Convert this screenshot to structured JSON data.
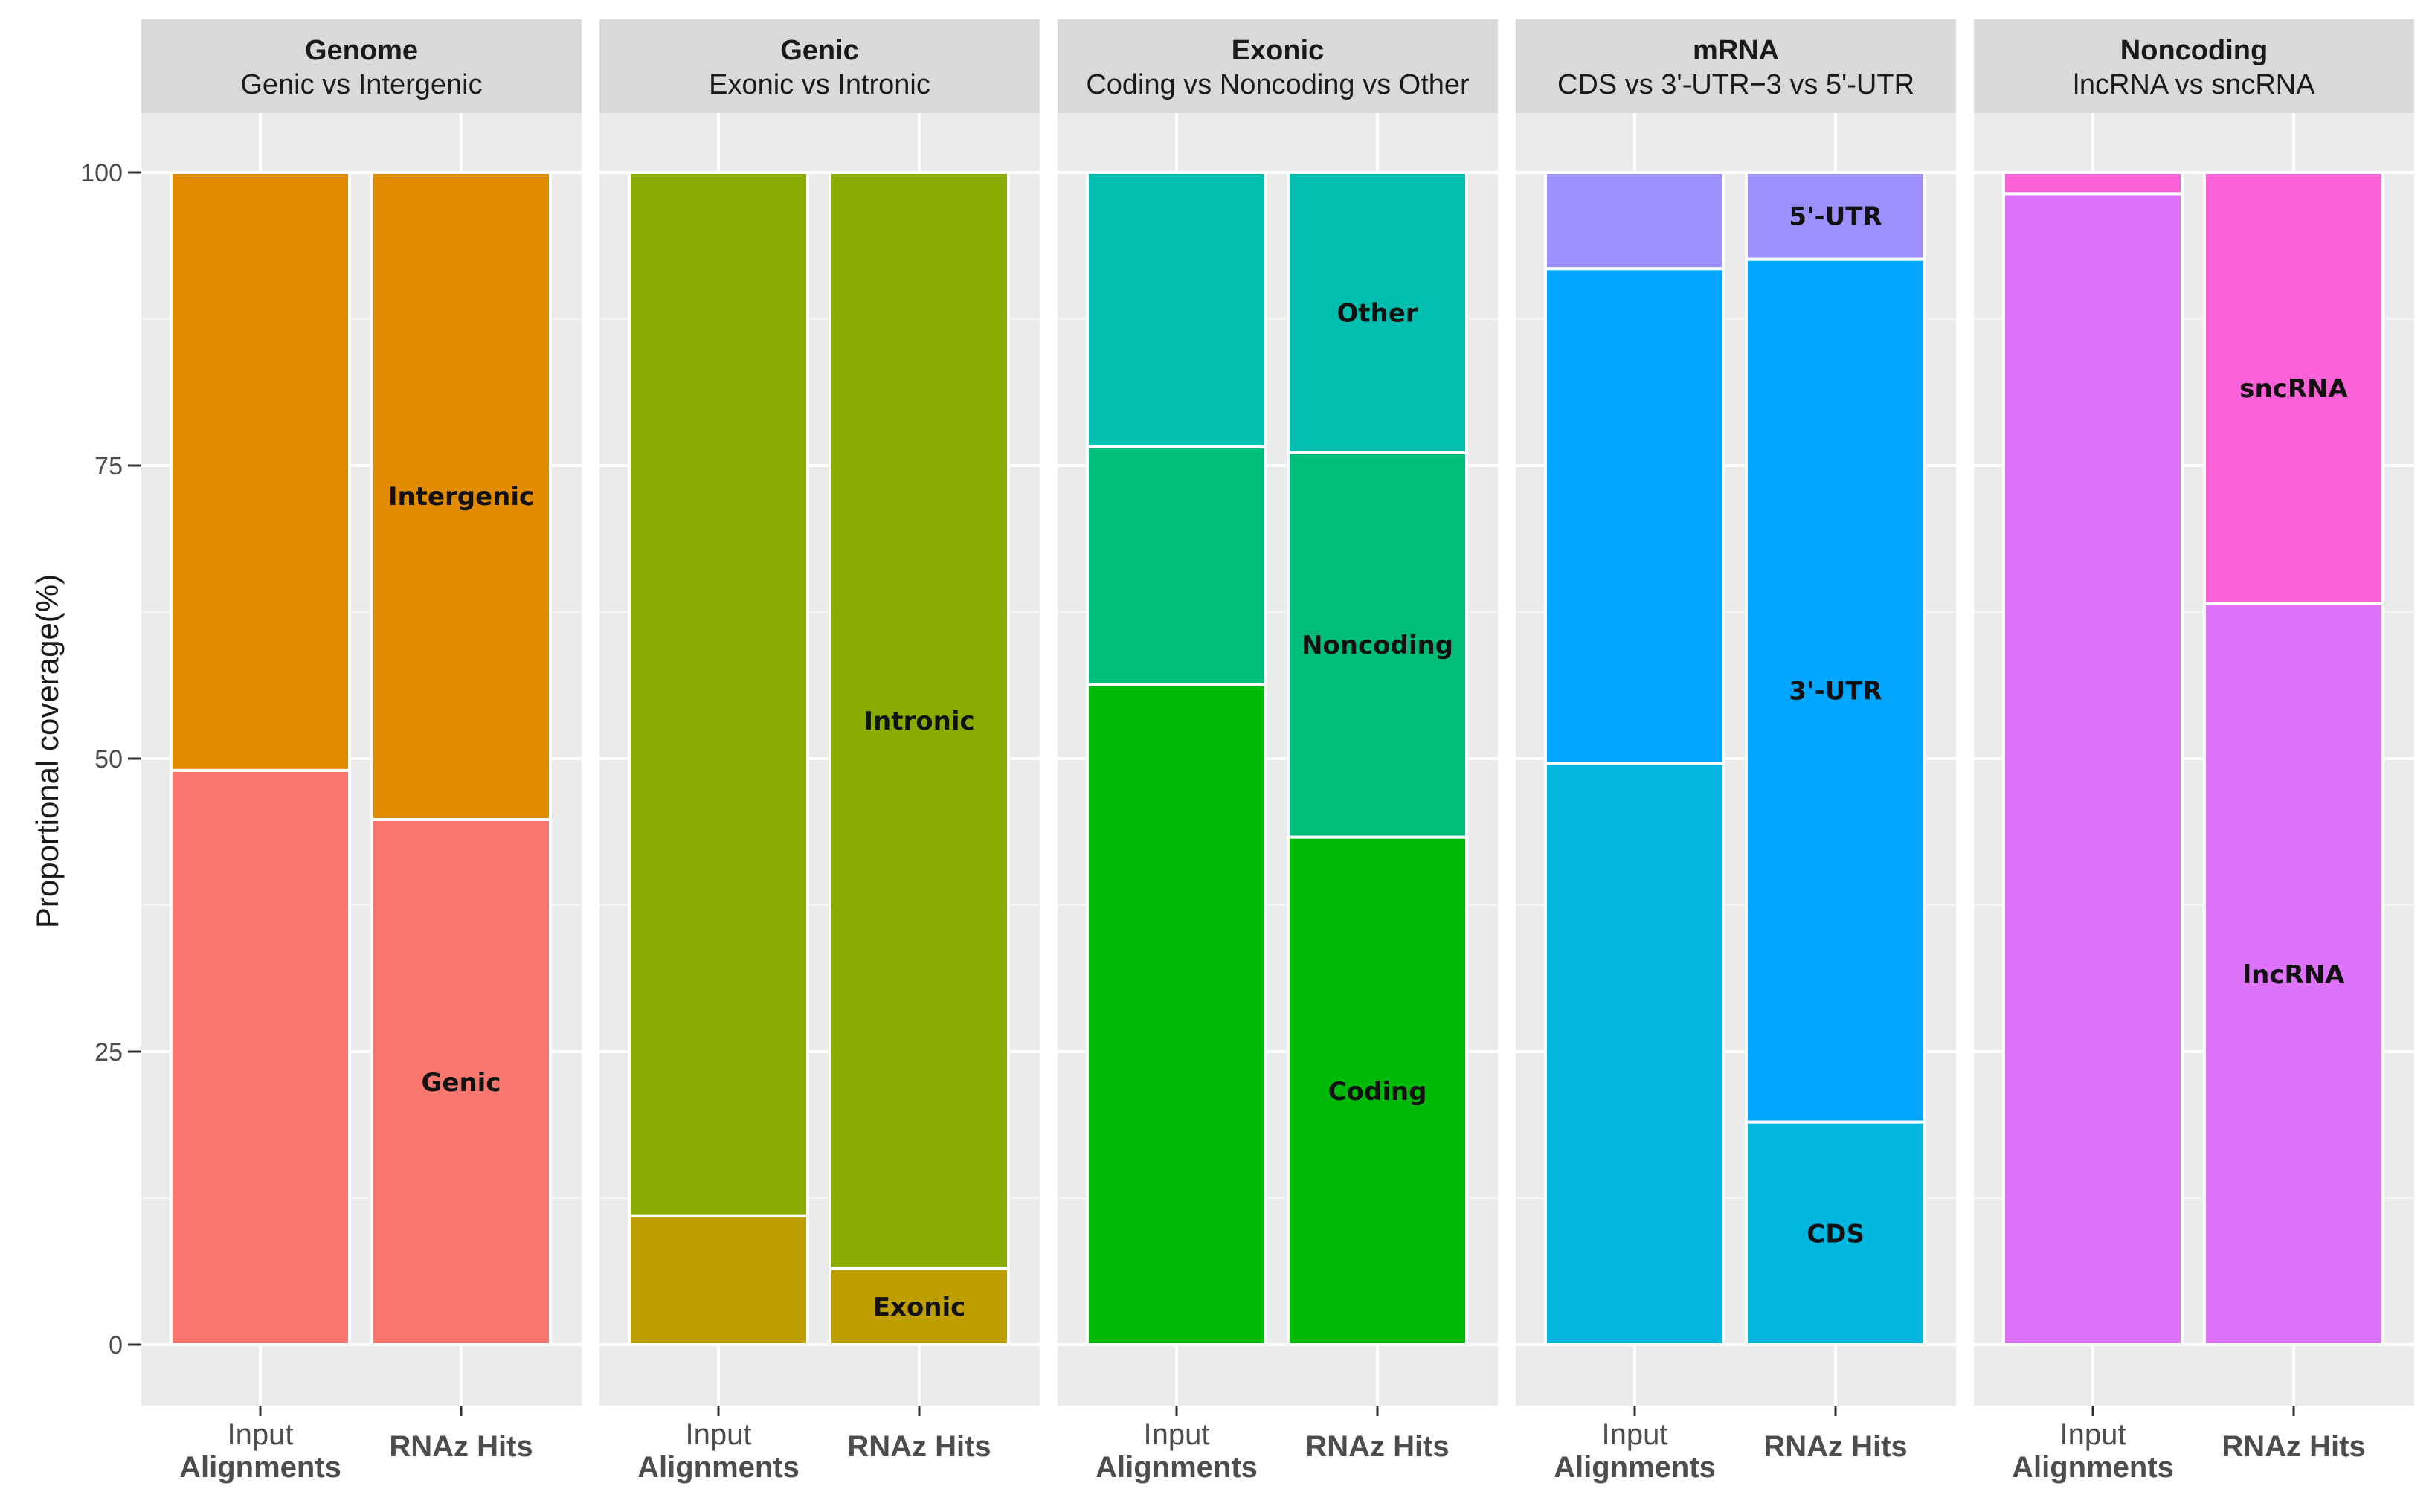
{
  "chart_data": {
    "type": "bar",
    "stacked": true,
    "ylabel": "Proportional coverage(%)",
    "ylim": [
      0,
      100
    ],
    "yticks": [
      "0",
      "25",
      "50",
      "75",
      "100"
    ],
    "categories": [
      {
        "line1": "Input",
        "line2": "Alignments"
      },
      {
        "line1": "",
        "line2": "RNAz Hits"
      }
    ],
    "panels": [
      {
        "title": "Genome",
        "subtitle": "Genic vs Intergenic",
        "segments": [
          {
            "name": "Genic",
            "color": "#F8766D",
            "values": [
              49,
              44.8
            ]
          },
          {
            "name": "Intergenic",
            "color": "#E08B00",
            "values": [
              51,
              55.2
            ]
          }
        ]
      },
      {
        "title": "Genic",
        "subtitle": "Exonic vs Intronic",
        "segments": [
          {
            "name": "Exonic",
            "color": "#BF9E00",
            "values": [
              11,
              6.5
            ]
          },
          {
            "name": "Intronic",
            "color": "#8AAC00",
            "values": [
              89,
              93.5
            ]
          }
        ]
      },
      {
        "title": "Exonic",
        "subtitle": "Coding vs Noncoding vs Other",
        "segments": [
          {
            "name": "Coding",
            "color": "#00BA09",
            "values": [
              56.3,
              43.3
            ]
          },
          {
            "name": "Noncoding",
            "color": "#00BE7A",
            "values": [
              20.3,
              32.8
            ]
          },
          {
            "name": "Other",
            "color": "#00BFAF",
            "values": [
              23.4,
              23.9
            ]
          }
        ]
      },
      {
        "title": "mRNA",
        "subtitle": "CDS vs 3'-UTR−3 vs 5'-UTR",
        "segments": [
          {
            "name": "CDS",
            "color": "#00B7DF",
            "values": [
              49.6,
              19
            ]
          },
          {
            "name": "3'-UTR",
            "color": "#00A6FF",
            "values": [
              42.2,
              73.6
            ]
          },
          {
            "name": "5'-UTR",
            "color": "#9E8FFF",
            "values": [
              8.2,
              7.4
            ]
          }
        ]
      },
      {
        "title": "Noncoding",
        "subtitle": "lncRNA vs sncRNA",
        "segments": [
          {
            "name": "lncRNA",
            "color": "#DE72F9",
            "values": [
              98.2,
              63.2
            ]
          },
          {
            "name": "sncRNA",
            "color": "#FB62D8",
            "values": [
              1.8,
              36.8
            ]
          }
        ]
      }
    ],
    "labelled_bar_index": 1
  }
}
